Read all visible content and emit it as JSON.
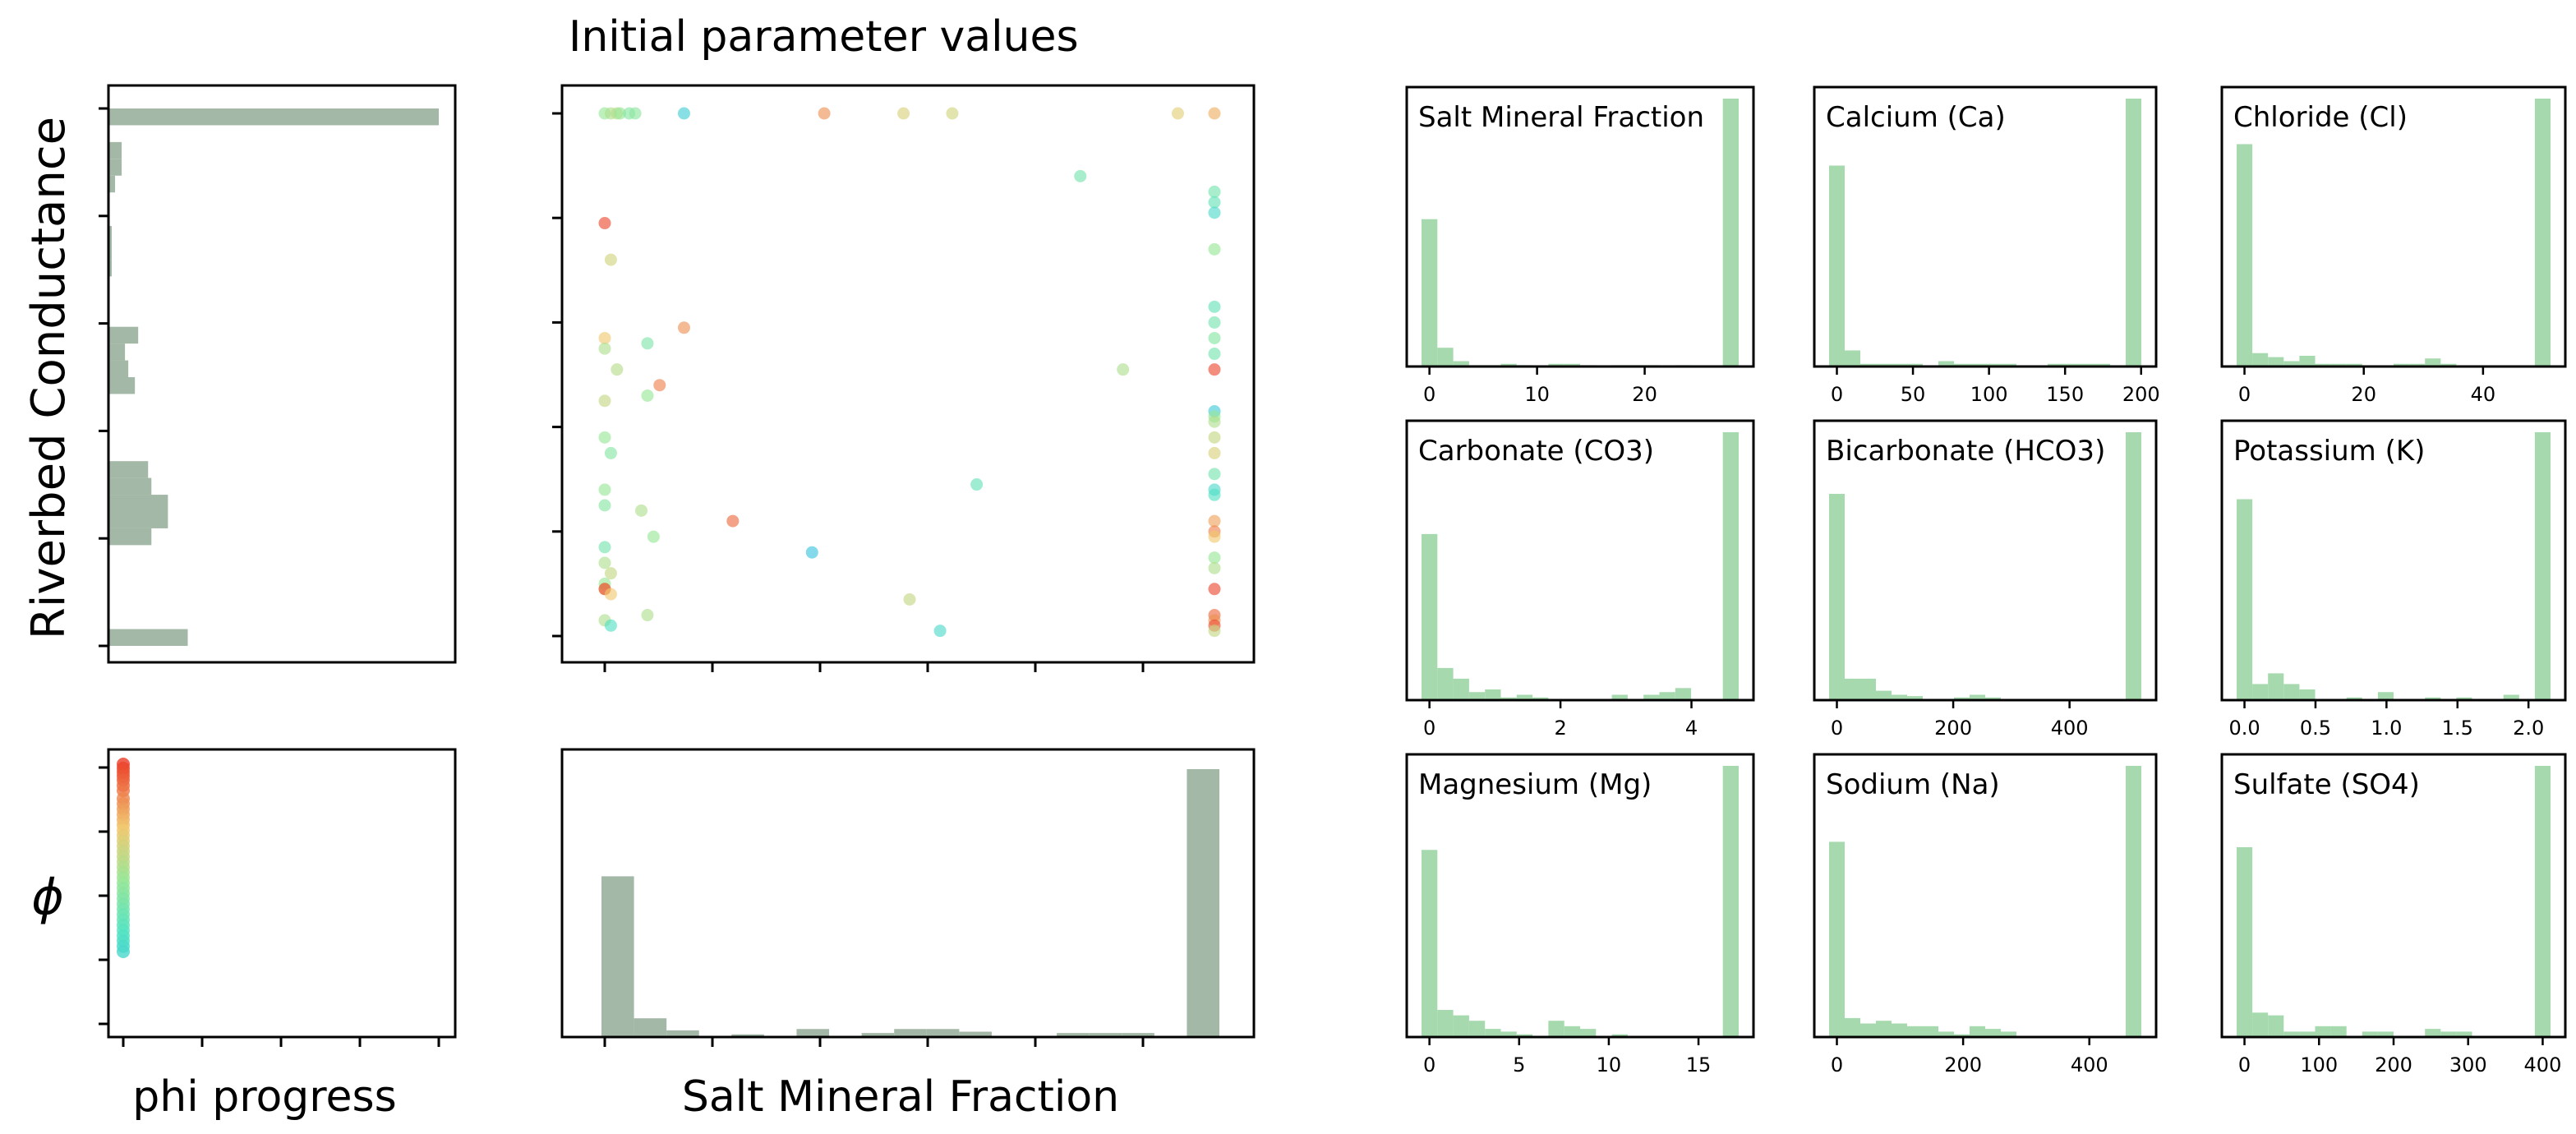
{
  "figure": {
    "title": "Initial parameter values",
    "ylabel_main": "Riverbed Conductance",
    "ylabel_phi": "ϕ",
    "xlabel_progress": "phi progress",
    "xlabel_main": "Salt Mineral Fraction"
  },
  "colors": {
    "bar_gray": "#a3b8a6",
    "bar_green": "#a6d9ad",
    "axis": "#000000"
  },
  "chart_data": [
    {
      "id": "riverbed_hist",
      "type": "bar",
      "orientation": "horizontal",
      "title": "",
      "ylabel": "Riverbed Conductance",
      "values": [
        0.24,
        0,
        0,
        0,
        0,
        0,
        0.13,
        0.18,
        0.18,
        0.13,
        0.12,
        0,
        0,
        0,
        0,
        0.08,
        0.06,
        0.05,
        0.09,
        0,
        0,
        0,
        0.01,
        0.01,
        0.01,
        0,
        0,
        0.02,
        0.04,
        0.04,
        0,
        1.0
      ]
    },
    {
      "id": "main_scatter",
      "type": "scatter",
      "title": "Initial parameter values",
      "xlabel": "",
      "ylabel": "",
      "xlim": [
        -0.05,
        1.05
      ],
      "ylim": [
        -0.05,
        1.05
      ],
      "points": [
        {
          "x": 0.0,
          "y": 1.0,
          "phi": 0.55
        },
        {
          "x": 0.01,
          "y": 1.0,
          "phi": 0.6
        },
        {
          "x": 0.02,
          "y": 1.0,
          "phi": 0.62
        },
        {
          "x": 0.025,
          "y": 1.0,
          "phi": 0.55
        },
        {
          "x": 0.04,
          "y": 1.0,
          "phi": 0.5
        },
        {
          "x": 0.05,
          "y": 1.0,
          "phi": 0.52
        },
        {
          "x": 0.13,
          "y": 1.0,
          "phi": 0.22
        },
        {
          "x": 0.36,
          "y": 1.0,
          "phi": 0.85
        },
        {
          "x": 0.49,
          "y": 1.0,
          "phi": 0.7
        },
        {
          "x": 0.57,
          "y": 1.0,
          "phi": 0.68
        },
        {
          "x": 0.94,
          "y": 1.0,
          "phi": 0.72
        },
        {
          "x": 1.0,
          "y": 1.0,
          "phi": 0.8
        },
        {
          "x": 0.78,
          "y": 0.88,
          "phi": 0.45
        },
        {
          "x": 1.0,
          "y": 0.85,
          "phi": 0.45
        },
        {
          "x": 1.0,
          "y": 0.83,
          "phi": 0.4
        },
        {
          "x": 1.0,
          "y": 0.81,
          "phi": 0.3
        },
        {
          "x": 0.0,
          "y": 0.79,
          "phi": 0.98
        },
        {
          "x": 1.0,
          "y": 0.74,
          "phi": 0.55
        },
        {
          "x": 0.01,
          "y": 0.72,
          "phi": 0.68
        },
        {
          "x": 1.0,
          "y": 0.63,
          "phi": 0.4
        },
        {
          "x": 1.0,
          "y": 0.6,
          "phi": 0.45
        },
        {
          "x": 0.13,
          "y": 0.59,
          "phi": 0.85
        },
        {
          "x": 0.0,
          "y": 0.57,
          "phi": 0.75
        },
        {
          "x": 0.07,
          "y": 0.56,
          "phi": 0.48
        },
        {
          "x": 1.0,
          "y": 0.57,
          "phi": 0.5
        },
        {
          "x": 0.0,
          "y": 0.55,
          "phi": 0.6
        },
        {
          "x": 1.0,
          "y": 0.54,
          "phi": 0.45
        },
        {
          "x": 0.02,
          "y": 0.51,
          "phi": 0.62
        },
        {
          "x": 0.85,
          "y": 0.51,
          "phi": 0.6
        },
        {
          "x": 1.0,
          "y": 0.51,
          "phi": 0.98
        },
        {
          "x": 0.09,
          "y": 0.48,
          "phi": 0.88
        },
        {
          "x": 0.0,
          "y": 0.45,
          "phi": 0.65
        },
        {
          "x": 0.07,
          "y": 0.46,
          "phi": 0.55
        },
        {
          "x": 1.0,
          "y": 0.43,
          "phi": 0.2
        },
        {
          "x": 1.0,
          "y": 0.42,
          "phi": 0.55
        },
        {
          "x": 1.0,
          "y": 0.41,
          "phi": 0.6
        },
        {
          "x": 0.0,
          "y": 0.38,
          "phi": 0.55
        },
        {
          "x": 0.01,
          "y": 0.35,
          "phi": 0.5
        },
        {
          "x": 1.0,
          "y": 0.38,
          "phi": 0.65
        },
        {
          "x": 1.0,
          "y": 0.35,
          "phi": 0.7
        },
        {
          "x": 0.61,
          "y": 0.29,
          "phi": 0.4
        },
        {
          "x": 1.0,
          "y": 0.31,
          "phi": 0.45
        },
        {
          "x": 1.0,
          "y": 0.28,
          "phi": 0.3
        },
        {
          "x": 1.0,
          "y": 0.27,
          "phi": 0.35
        },
        {
          "x": 0.0,
          "y": 0.28,
          "phi": 0.55
        },
        {
          "x": 0.0,
          "y": 0.25,
          "phi": 0.5
        },
        {
          "x": 0.06,
          "y": 0.24,
          "phi": 0.6
        },
        {
          "x": 0.21,
          "y": 0.22,
          "phi": 0.92
        },
        {
          "x": 1.0,
          "y": 0.22,
          "phi": 0.82
        },
        {
          "x": 1.0,
          "y": 0.2,
          "phi": 0.88
        },
        {
          "x": 1.0,
          "y": 0.19,
          "phi": 0.75
        },
        {
          "x": 0.08,
          "y": 0.19,
          "phi": 0.55
        },
        {
          "x": 0.0,
          "y": 0.17,
          "phi": 0.45
        },
        {
          "x": 0.34,
          "y": 0.16,
          "phi": 0.15
        },
        {
          "x": 0.0,
          "y": 0.14,
          "phi": 0.6
        },
        {
          "x": 0.01,
          "y": 0.12,
          "phi": 0.65
        },
        {
          "x": 1.0,
          "y": 0.15,
          "phi": 0.55
        },
        {
          "x": 1.0,
          "y": 0.13,
          "phi": 0.6
        },
        {
          "x": 0.0,
          "y": 0.1,
          "phi": 0.55
        },
        {
          "x": 0.0,
          "y": 0.09,
          "phi": 0.7
        },
        {
          "x": 0.0,
          "y": 0.09,
          "phi": 0.99
        },
        {
          "x": 0.01,
          "y": 0.08,
          "phi": 0.75
        },
        {
          "x": 1.0,
          "y": 0.09,
          "phi": 0.98
        },
        {
          "x": 0.5,
          "y": 0.07,
          "phi": 0.65
        },
        {
          "x": 0.07,
          "y": 0.04,
          "phi": 0.6
        },
        {
          "x": 1.0,
          "y": 0.04,
          "phi": 0.92
        },
        {
          "x": 1.0,
          "y": 0.03,
          "phi": 0.85
        },
        {
          "x": 0.0,
          "y": 0.03,
          "phi": 0.6
        },
        {
          "x": 0.01,
          "y": 0.02,
          "phi": 0.35
        },
        {
          "x": 0.55,
          "y": 0.01,
          "phi": 0.3
        },
        {
          "x": 1.0,
          "y": 0.02,
          "phi": 0.97
        },
        {
          "x": 1.0,
          "y": 0.01,
          "phi": 0.65
        }
      ]
    },
    {
      "id": "phi_progress",
      "type": "scatter",
      "title": "",
      "xlabel": "phi progress",
      "ylabel": "ϕ",
      "xlim": [
        -0.05,
        1.05
      ],
      "ylim": [
        -0.05,
        1.05
      ],
      "points": [
        {
          "x": 0,
          "y": 1.0
        },
        {
          "x": 0,
          "y": 0.985
        },
        {
          "x": 0,
          "y": 0.97
        },
        {
          "x": 0,
          "y": 0.955
        },
        {
          "x": 0,
          "y": 0.94
        },
        {
          "x": 0,
          "y": 0.92
        },
        {
          "x": 0,
          "y": 0.9
        },
        {
          "x": 0,
          "y": 0.87
        },
        {
          "x": 0,
          "y": 0.85
        },
        {
          "x": 0,
          "y": 0.83
        },
        {
          "x": 0,
          "y": 0.81
        },
        {
          "x": 0,
          "y": 0.79
        },
        {
          "x": 0,
          "y": 0.77
        },
        {
          "x": 0,
          "y": 0.75
        },
        {
          "x": 0,
          "y": 0.73
        },
        {
          "x": 0,
          "y": 0.71
        },
        {
          "x": 0,
          "y": 0.69
        },
        {
          "x": 0,
          "y": 0.67
        },
        {
          "x": 0,
          "y": 0.65
        },
        {
          "x": 0,
          "y": 0.63
        },
        {
          "x": 0,
          "y": 0.61
        },
        {
          "x": 0,
          "y": 0.59
        },
        {
          "x": 0,
          "y": 0.57
        },
        {
          "x": 0,
          "y": 0.55
        },
        {
          "x": 0,
          "y": 0.53
        },
        {
          "x": 0,
          "y": 0.51
        },
        {
          "x": 0,
          "y": 0.49
        },
        {
          "x": 0,
          "y": 0.47
        },
        {
          "x": 0,
          "y": 0.45
        },
        {
          "x": 0,
          "y": 0.43
        },
        {
          "x": 0,
          "y": 0.41
        },
        {
          "x": 0,
          "y": 0.39
        },
        {
          "x": 0,
          "y": 0.37
        },
        {
          "x": 0,
          "y": 0.35
        },
        {
          "x": 0,
          "y": 0.33
        },
        {
          "x": 0,
          "y": 0.31
        },
        {
          "x": 0,
          "y": 0.29
        }
      ]
    },
    {
      "id": "salt_fraction_hist",
      "type": "bar",
      "title": "",
      "xlabel": "Salt Mineral Fraction",
      "ylabel": "",
      "values": [
        0.6,
        0.07,
        0.025,
        0,
        0.01,
        0,
        0.03,
        0,
        0.015,
        0.03,
        0.03,
        0.02,
        0,
        0,
        0.015,
        0.015,
        0.015,
        0,
        1.0
      ]
    },
    {
      "id": "hist_salt",
      "type": "bar",
      "title": "Salt Mineral Fraction",
      "x_range": [
        0,
        28
      ],
      "xticks": [
        "0",
        "10",
        "20"
      ],
      "xtick_values": [
        0,
        10,
        20
      ],
      "values": [
        0.55,
        0.07,
        0.02,
        0.005,
        0.005,
        0.01,
        0.005,
        0,
        0.01,
        0.01,
        0.005,
        0,
        0.005,
        0.005,
        0.005,
        0,
        0.005,
        0,
        0,
        1.0
      ]
    },
    {
      "id": "hist_ca",
      "type": "bar",
      "title": "Calcium (Ca)",
      "x_range": [
        0,
        195
      ],
      "xticks": [
        "0",
        "50",
        "100",
        "150",
        "200"
      ],
      "xtick_values": [
        0,
        50,
        100,
        150,
        200
      ],
      "values": [
        0.75,
        0.06,
        0.01,
        0.01,
        0.01,
        0.01,
        0,
        0.02,
        0.01,
        0.01,
        0.01,
        0.01,
        0,
        0,
        0.01,
        0.01,
        0.01,
        0.01,
        0,
        1.0
      ]
    },
    {
      "id": "hist_cl",
      "type": "bar",
      "title": "Chloride (Cl)",
      "x_range": [
        0,
        50
      ],
      "xticks": [
        "0",
        "20",
        "40"
      ],
      "xtick_values": [
        0,
        20,
        40
      ],
      "values": [
        0.83,
        0.05,
        0.035,
        0.02,
        0.04,
        0.01,
        0.01,
        0.01,
        0,
        0,
        0.01,
        0.01,
        0.03,
        0.01,
        0,
        0,
        0,
        0,
        0,
        1.0
      ]
    },
    {
      "id": "hist_co3",
      "type": "bar",
      "title": "Carbonate (CO3)",
      "x_range": [
        0,
        4.6
      ],
      "xticks": [
        "0",
        "2",
        "4"
      ],
      "xtick_values": [
        0,
        2,
        4
      ],
      "values": [
        0.62,
        0.12,
        0.08,
        0.03,
        0.04,
        0.01,
        0.02,
        0.01,
        0,
        0,
        0,
        0,
        0.02,
        0,
        0.02,
        0.03,
        0.045,
        0,
        0,
        1.0
      ]
    },
    {
      "id": "hist_hco3",
      "type": "bar",
      "title": "Bicarbonate (HCO3)",
      "x_range": [
        0,
        510
      ],
      "xticks": [
        "0",
        "200",
        "400"
      ],
      "xtick_values": [
        0,
        200,
        400
      ],
      "values": [
        0.77,
        0.08,
        0.08,
        0.035,
        0.02,
        0.015,
        0,
        0,
        0.01,
        0.02,
        0.01,
        0,
        0,
        0,
        0,
        0,
        0,
        0,
        0,
        1.0
      ]
    },
    {
      "id": "hist_k",
      "type": "bar",
      "title": "Potassium (K)",
      "x_range": [
        0,
        2.1
      ],
      "xticks": [
        "0.0",
        "0.5",
        "1.0",
        "1.5",
        "2.0"
      ],
      "xtick_values": [
        0,
        0.5,
        1.0,
        1.5,
        2.0
      ],
      "values": [
        0.75,
        0.06,
        0.1,
        0.06,
        0.04,
        0,
        0,
        0.01,
        0,
        0.03,
        0,
        0,
        0.01,
        0,
        0.01,
        0,
        0,
        0.02,
        0,
        1.0
      ]
    },
    {
      "id": "hist_mg",
      "type": "bar",
      "title": "Magnesium (Mg)",
      "x_range": [
        0,
        16.8
      ],
      "xticks": [
        "0",
        "5",
        "10",
        "15"
      ],
      "xtick_values": [
        0,
        5,
        10,
        15
      ],
      "values": [
        0.69,
        0.1,
        0.08,
        0.06,
        0.03,
        0.02,
        0.01,
        0,
        0.06,
        0.04,
        0.03,
        0,
        0.01,
        0,
        0,
        0,
        0,
        0,
        0,
        1.0
      ]
    },
    {
      "id": "hist_na",
      "type": "bar",
      "title": "Sodium (Na)",
      "x_range": [
        0,
        470
      ],
      "xticks": [
        "0",
        "200",
        "400"
      ],
      "xtick_values": [
        0,
        200,
        400
      ],
      "values": [
        0.72,
        0.07,
        0.05,
        0.06,
        0.05,
        0.04,
        0.04,
        0.02,
        0.01,
        0.04,
        0.03,
        0.02,
        0,
        0,
        0,
        0,
        0,
        0,
        0,
        1.0
      ]
    },
    {
      "id": "hist_so4",
      "type": "bar",
      "title": "Sulfate (SO4)",
      "x_range": [
        0,
        400
      ],
      "xticks": [
        "0",
        "100",
        "200",
        "300",
        "400"
      ],
      "xtick_values": [
        0,
        100,
        200,
        300,
        400
      ],
      "values": [
        0.7,
        0.09,
        0.08,
        0.02,
        0.02,
        0.04,
        0.04,
        0,
        0.02,
        0.02,
        0,
        0,
        0.03,
        0.02,
        0.02,
        0,
        0,
        0,
        0,
        1.0
      ]
    }
  ]
}
